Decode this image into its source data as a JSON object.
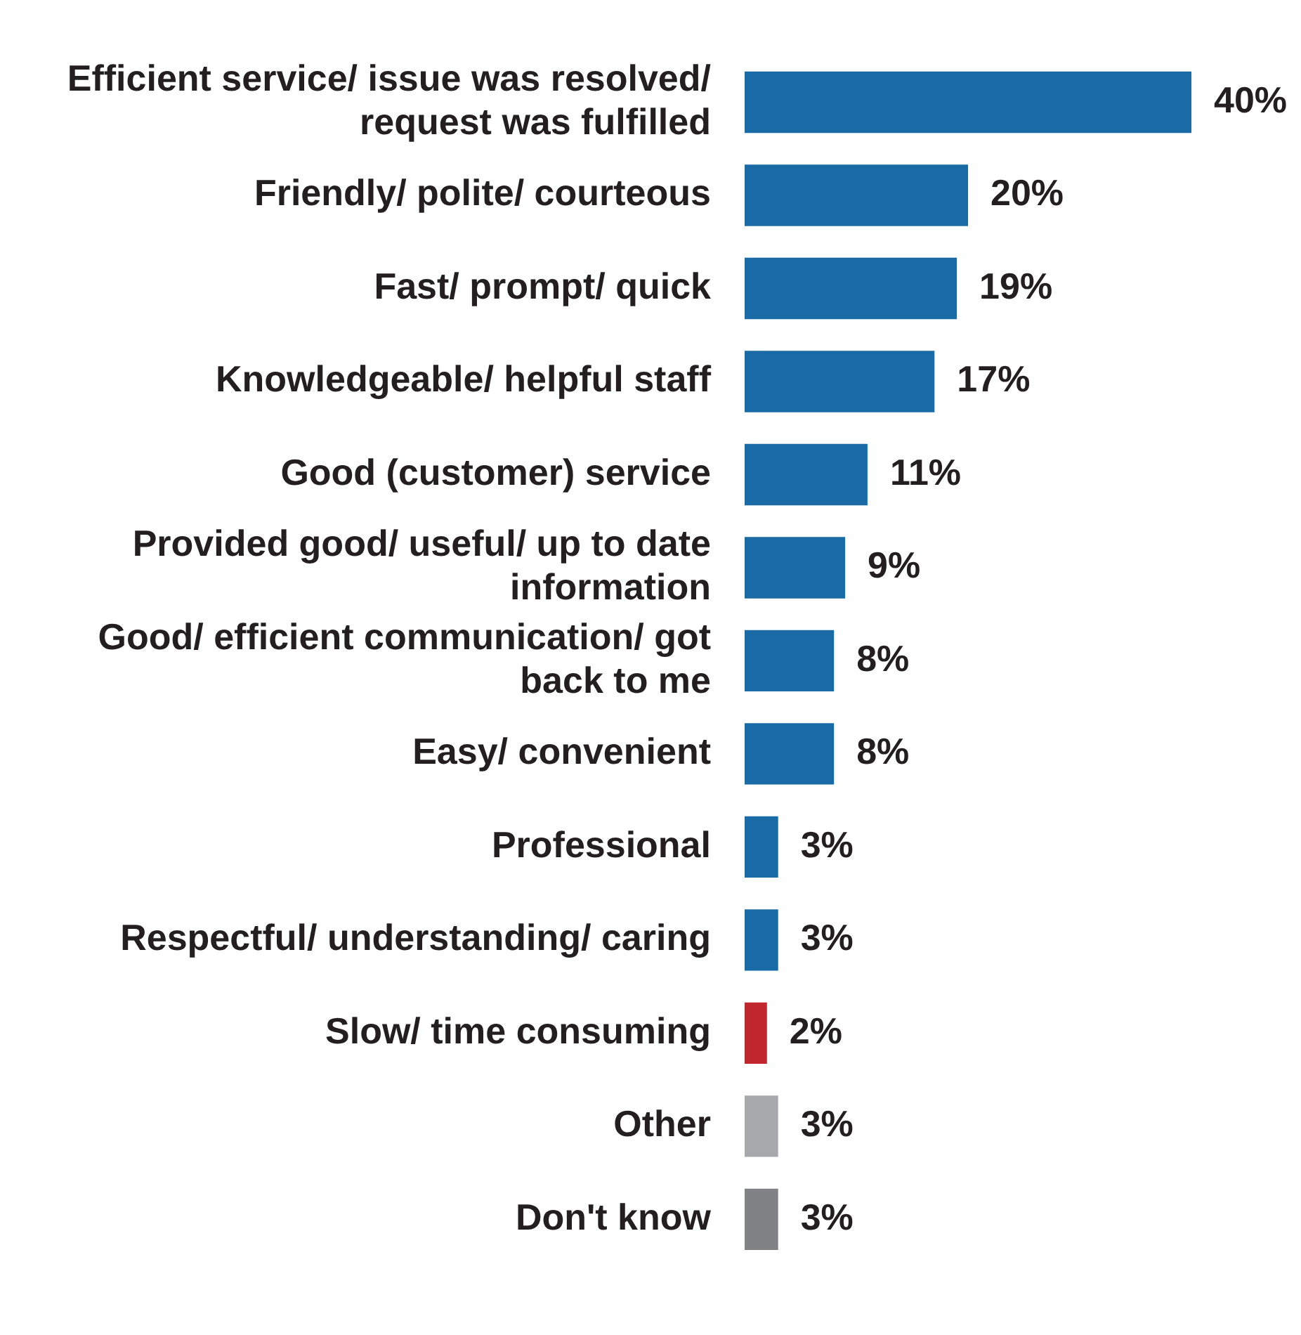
{
  "chart_data": {
    "type": "bar",
    "orientation": "horizontal",
    "categories": [
      "Efficient service/ issue was resolved/ request was fulfilled",
      "Friendly/ polite/ courteous",
      "Fast/ prompt/ quick",
      "Knowledgeable/ helpful staff",
      "Good (customer) service",
      "Provided good/ useful/ up to date information",
      "Good/ efficient communication/ got back to me",
      "Easy/ convenient",
      "Professional",
      "Respectful/ understanding/ caring",
      "Slow/ time consuming",
      "Other",
      "Don't know"
    ],
    "values": [
      40,
      20,
      19,
      17,
      11,
      9,
      8,
      8,
      3,
      3,
      2,
      3,
      3
    ],
    "value_labels": [
      "40%",
      "20%",
      "19%",
      "17%",
      "11%",
      "9%",
      "8%",
      "8%",
      "3%",
      "3%",
      "2%",
      "3%",
      "3%"
    ],
    "colors": [
      "#1a6aa6",
      "#1a6aa6",
      "#1a6aa6",
      "#1a6aa6",
      "#1a6aa6",
      "#1a6aa6",
      "#1a6aa6",
      "#1a6aa6",
      "#1a6aa6",
      "#1a6aa6",
      "#c1272d",
      "#a7a9ac",
      "#808285"
    ],
    "legend": false
  }
}
